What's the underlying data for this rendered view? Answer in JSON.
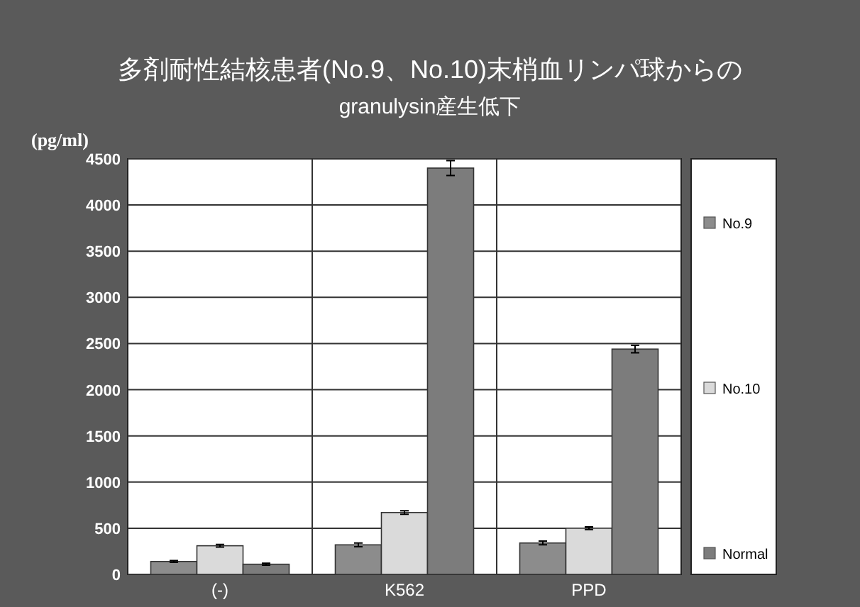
{
  "chart_data": {
    "type": "bar",
    "title": "多剤耐性結核患者(No.9、No.10)末梢血リンパ球からの",
    "subtitle": "granulysin産生低下",
    "ylabel": "(pg/ml)",
    "categories": [
      "(-)",
      "K562",
      "PPD"
    ],
    "series": [
      {
        "name": "No.9",
        "color": "#8c8c8c",
        "values": [
          140,
          320,
          340
        ],
        "errors": [
          10,
          20,
          20
        ]
      },
      {
        "name": "No.10",
        "color": "#dadada",
        "values": [
          310,
          670,
          500
        ],
        "errors": [
          15,
          20,
          15
        ]
      },
      {
        "name": "Normal",
        "color": "#7c7c7c",
        "values": [
          110,
          4400,
          2440
        ],
        "errors": [
          10,
          80,
          40
        ]
      }
    ],
    "ylim": [
      0,
      4500
    ],
    "yticks": [
      0,
      500,
      1000,
      1500,
      2000,
      2500,
      3000,
      3500,
      4000,
      4500
    ],
    "grid": "y",
    "legend": "right"
  }
}
